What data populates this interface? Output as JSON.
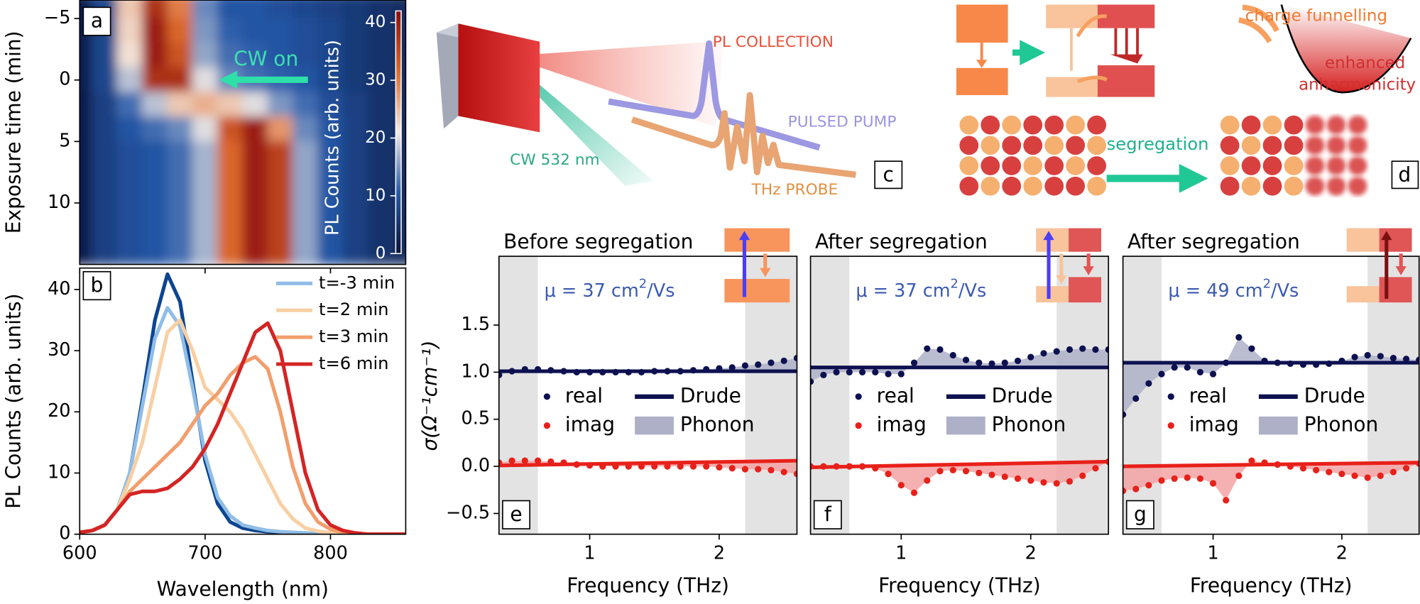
{
  "chart_data": [
    {
      "type": "heatmap",
      "label": "a",
      "annotation": "CW on",
      "ylabel": "Exposure time (min)",
      "colorbar_label": "PL Counts (arb. units)",
      "x": [
        600,
        620,
        640,
        660,
        680,
        700,
        720,
        740,
        760,
        780,
        800,
        820,
        840,
        860
      ],
      "y": [
        -6,
        -4,
        -2,
        0,
        2,
        4,
        6,
        8,
        10,
        12,
        14
      ],
      "z": [
        [
          2,
          8,
          24,
          38,
          30,
          14,
          10,
          10,
          9,
          8,
          7,
          6,
          5,
          4
        ],
        [
          2,
          8,
          23,
          40,
          32,
          15,
          11,
          10,
          10,
          9,
          8,
          6,
          5,
          4
        ],
        [
          2,
          8,
          22,
          40,
          34,
          16,
          12,
          11,
          10,
          9,
          8,
          6,
          5,
          4
        ],
        [
          2,
          8,
          18,
          38,
          38,
          20,
          14,
          12,
          11,
          10,
          8,
          6,
          5,
          4
        ],
        [
          2,
          7,
          12,
          18,
          24,
          26,
          24,
          20,
          15,
          12,
          9,
          7,
          5,
          4
        ],
        [
          2,
          7,
          10,
          12,
          14,
          20,
          34,
          40,
          28,
          14,
          10,
          7,
          5,
          4
        ],
        [
          2,
          7,
          9,
          10,
          12,
          17,
          32,
          40,
          36,
          16,
          10,
          7,
          5,
          4
        ],
        [
          2,
          7,
          9,
          10,
          12,
          17,
          32,
          40,
          36,
          16,
          10,
          7,
          5,
          4
        ],
        [
          2,
          7,
          9,
          10,
          12,
          17,
          32,
          40,
          36,
          16,
          10,
          7,
          5,
          4
        ],
        [
          2,
          7,
          9,
          10,
          12,
          17,
          32,
          40,
          36,
          16,
          10,
          7,
          5,
          4
        ],
        [
          2,
          7,
          9,
          10,
          12,
          17,
          32,
          40,
          36,
          16,
          10,
          7,
          5,
          4
        ]
      ],
      "xlim": [
        600,
        860
      ],
      "ylim": [
        -6.5,
        15
      ],
      "y_inverted": true,
      "yticks": [
        {
          "value": -5,
          "label": "−5"
        },
        0,
        5,
        10
      ],
      "clim": [
        0,
        42
      ],
      "cticks": [
        0,
        10,
        20,
        30,
        40
      ],
      "colormap": [
        "#0a1236",
        "#2458a8",
        "#f4ece6",
        "#dd6a2c",
        "#8c0c0c"
      ]
    },
    {
      "type": "line",
      "label": "b",
      "xlabel": "Wavelength (nm)",
      "ylabel": "PL Counts (arb. units)",
      "x": [
        600,
        610,
        620,
        630,
        640,
        650,
        660,
        670,
        680,
        690,
        700,
        710,
        720,
        730,
        740,
        750,
        760,
        770,
        780,
        790,
        800,
        810,
        820,
        830,
        840,
        850,
        860
      ],
      "series": [
        {
          "color": "#0d4590",
          "values": [
            0.3,
            0.6,
            1.5,
            4,
            10,
            22,
            35,
            42.5,
            38,
            25,
            12,
            5,
            2,
            1,
            0.6,
            0.4,
            0.3,
            0.2,
            0.1,
            0,
            0,
            0,
            0,
            0,
            0,
            0,
            0
          ]
        },
        {
          "name": "t=-3 min",
          "color": "#90bde6",
          "values": [
            0.3,
            0.6,
            1.5,
            4,
            10,
            21,
            32,
            37,
            34,
            24,
            13,
            6,
            3,
            1.5,
            1,
            0.6,
            0.4,
            0.3,
            0.2,
            0.1,
            0,
            0,
            0,
            0,
            0,
            0,
            0
          ]
        },
        {
          "name": "t=2 min",
          "color": "#f8cfa4",
          "values": [
            0.3,
            0.6,
            1.5,
            4,
            9,
            15,
            24,
            33,
            35,
            30,
            24,
            22,
            20,
            17,
            13,
            9,
            5,
            2.5,
            1,
            0.5,
            0.2,
            0.1,
            0,
            0,
            0,
            0,
            0
          ]
        },
        {
          "name": "t=3 min",
          "color": "#f29e6c",
          "values": [
            0.3,
            0.6,
            1.5,
            4,
            7,
            9,
            11,
            13,
            15,
            18,
            21,
            23,
            26,
            28,
            29,
            27,
            20,
            11,
            5,
            2,
            0.8,
            0.3,
            0.1,
            0,
            0,
            0,
            0
          ]
        },
        {
          "name": "t=6 min",
          "color": "#d42424",
          "values": [
            0.3,
            0.6,
            1.5,
            4,
            6.5,
            7,
            7,
            7.5,
            9,
            11,
            14,
            18,
            23,
            28,
            33,
            34.5,
            30,
            20,
            10,
            4,
            1.5,
            0.6,
            0.2,
            0,
            0,
            0,
            0
          ]
        }
      ],
      "xlim": [
        600,
        860
      ],
      "ylim": [
        0,
        43.5
      ],
      "xticks": [
        600,
        700,
        800
      ],
      "yticks": [
        0,
        10,
        20,
        30,
        40
      ]
    },
    {
      "type": "scatter",
      "label": "e",
      "title": "Before segregation",
      "ylabel": "σ(Ω⁻¹cm⁻¹)",
      "xlabel": "Frequency (THz)",
      "mobility": {
        "prefix": "μ = 37 cm",
        "sup": "2",
        "suffix": "/Vs"
      },
      "x": [
        0.3,
        0.4,
        0.5,
        0.6,
        0.7,
        0.8,
        0.9,
        1.0,
        1.1,
        1.2,
        1.3,
        1.4,
        1.5,
        1.6,
        1.7,
        1.8,
        1.9,
        2.0,
        2.1,
        2.2,
        2.3,
        2.4,
        2.5,
        2.6
      ],
      "series": [
        {
          "name": "real",
          "color": "#0d1150",
          "values": [
            0.97,
            1.01,
            1.03,
            1.03,
            1.02,
            1.01,
            1.0,
            1.0,
            1.0,
            1.0,
            1.0,
            1.0,
            1.01,
            1.01,
            1.01,
            1.02,
            1.03,
            1.04,
            1.05,
            1.07,
            1.08,
            1.1,
            1.12,
            1.15
          ]
        },
        {
          "name": "imag",
          "color": "#e8201a",
          "values": [
            0.04,
            0.06,
            0.06,
            0.06,
            0.05,
            0.04,
            0.02,
            0.01,
            0,
            0,
            0,
            0,
            0,
            0,
            0,
            0,
            0,
            -0.01,
            -0.02,
            -0.03,
            -0.03,
            -0.04,
            -0.06,
            -0.08
          ]
        }
      ],
      "drude": {
        "name": "Drude",
        "x": [
          0.3,
          2.6
        ],
        "real": [
          1.01,
          1.01
        ],
        "imag": [
          0.01,
          0.06
        ],
        "color": "#0d1150",
        "imag_color": "#e8201a"
      },
      "phonon": {
        "name": "Phonon",
        "color": "#aeb0c8",
        "imag_color": "#f3a3a3"
      },
      "shaded": [
        [
          0.3,
          0.6
        ],
        [
          2.2,
          2.6
        ]
      ],
      "xlim": [
        0.3,
        2.6
      ],
      "ylim": [
        -0.72,
        2.23
      ],
      "xticks": [
        1,
        2
      ],
      "yticks": [
        {
          "value": -0.5,
          "label": "−0.5"
        },
        {
          "value": 0,
          "label": "0.0"
        },
        0.5,
        {
          "value": 1,
          "label": "1.0"
        },
        1.5
      ]
    },
    {
      "type": "scatter",
      "label": "f",
      "title": "After segregation",
      "xlabel": "Frequency (THz)",
      "mobility": {
        "prefix": "μ = 37 cm",
        "sup": "2",
        "suffix": "/Vs"
      },
      "x": [
        0.3,
        0.4,
        0.5,
        0.6,
        0.7,
        0.8,
        0.9,
        1.0,
        1.1,
        1.2,
        1.3,
        1.4,
        1.5,
        1.6,
        1.7,
        1.8,
        1.9,
        2.0,
        2.1,
        2.2,
        2.3,
        2.4,
        2.5,
        2.6
      ],
      "series": [
        {
          "name": "real",
          "color": "#0d1150",
          "values": [
            0.9,
            0.97,
            1.0,
            1.0,
            1.0,
            1.0,
            0.98,
            0.98,
            1.1,
            1.25,
            1.24,
            1.18,
            1.13,
            1.1,
            1.09,
            1.1,
            1.12,
            1.16,
            1.2,
            1.22,
            1.24,
            1.25,
            1.24,
            1.24
          ]
        },
        {
          "name": "imag",
          "color": "#e8201a",
          "values": [
            0,
            0,
            0,
            0,
            0,
            -0.02,
            -0.08,
            -0.2,
            -0.28,
            -0.15,
            -0.05,
            -0.04,
            -0.05,
            -0.07,
            -0.09,
            -0.11,
            -0.13,
            -0.15,
            -0.17,
            -0.18,
            -0.16,
            -0.1,
            -0.02,
            0.05
          ]
        }
      ],
      "drude": {
        "name": "Drude",
        "x": [
          0.3,
          2.6
        ],
        "real": [
          1.05,
          1.05
        ],
        "imag": [
          -0.01,
          0.05
        ],
        "color": "#0d1150",
        "imag_color": "#e8201a"
      },
      "phonon": {
        "name": "Phonon",
        "color": "#aeb0c8",
        "imag_color": "#f3a3a3"
      },
      "shaded": [
        [
          0.3,
          0.6
        ],
        [
          2.2,
          2.6
        ]
      ],
      "xlim": [
        0.3,
        2.6
      ],
      "ylim": [
        -0.72,
        2.23
      ],
      "xticks": [
        1,
        2
      ]
    },
    {
      "type": "scatter",
      "label": "g",
      "title": "After segregation",
      "xlabel": "Frequency (THz)",
      "mobility": {
        "prefix": "μ = 49 cm",
        "sup": "2",
        "suffix": "/Vs"
      },
      "x": [
        0.3,
        0.4,
        0.5,
        0.6,
        0.7,
        0.8,
        0.9,
        1.0,
        1.1,
        1.2,
        1.3,
        1.4,
        1.5,
        1.6,
        1.7,
        1.8,
        1.9,
        2.0,
        2.1,
        2.2,
        2.3,
        2.4,
        2.5,
        2.6
      ],
      "series": [
        {
          "name": "real",
          "color": "#0d1150",
          "values": [
            0.55,
            0.72,
            0.88,
            0.98,
            1.05,
            1.05,
            1.0,
            0.98,
            1.1,
            1.37,
            1.25,
            1.12,
            1.1,
            1.09,
            1.08,
            1.08,
            1.09,
            1.12,
            1.16,
            1.18,
            1.17,
            1.15,
            1.14,
            1.13
          ]
        },
        {
          "name": "imag",
          "color": "#e8201a",
          "values": [
            -0.26,
            -0.24,
            -0.2,
            -0.15,
            -0.13,
            -0.12,
            -0.13,
            -0.18,
            -0.36,
            -0.1,
            0.06,
            0.04,
            0.02,
            0,
            -0.02,
            -0.04,
            -0.06,
            -0.08,
            -0.1,
            -0.12,
            -0.1,
            -0.06,
            -0.02,
            0.03
          ]
        }
      ],
      "drude": {
        "name": "Drude",
        "x": [
          0.3,
          2.6
        ],
        "real": [
          1.1,
          1.1
        ],
        "imag": [
          0,
          0.04
        ],
        "color": "#0d1150",
        "imag_color": "#e8201a"
      },
      "phonon": {
        "name": "Phonon",
        "color": "#aeb0c8",
        "imag_color": "#f3a3a3"
      },
      "shaded": [
        [
          0.3,
          0.6
        ],
        [
          2.2,
          2.6
        ]
      ],
      "xlim": [
        0.3,
        2.6
      ],
      "ylim": [
        -0.72,
        2.23
      ],
      "xticks": [
        1,
        2
      ]
    }
  ],
  "diagrams": {
    "c": {
      "label": "c",
      "pl": "PL COLLECTION",
      "pump": "PULSED PUMP",
      "cw": "CW 532 nm",
      "probe": "THz PROBE"
    },
    "d": {
      "label": "d",
      "funnel": "charge funnelling",
      "anharm_1": "enhanced",
      "anharm_2": "anharmonicity",
      "segregation": "segregation"
    }
  }
}
